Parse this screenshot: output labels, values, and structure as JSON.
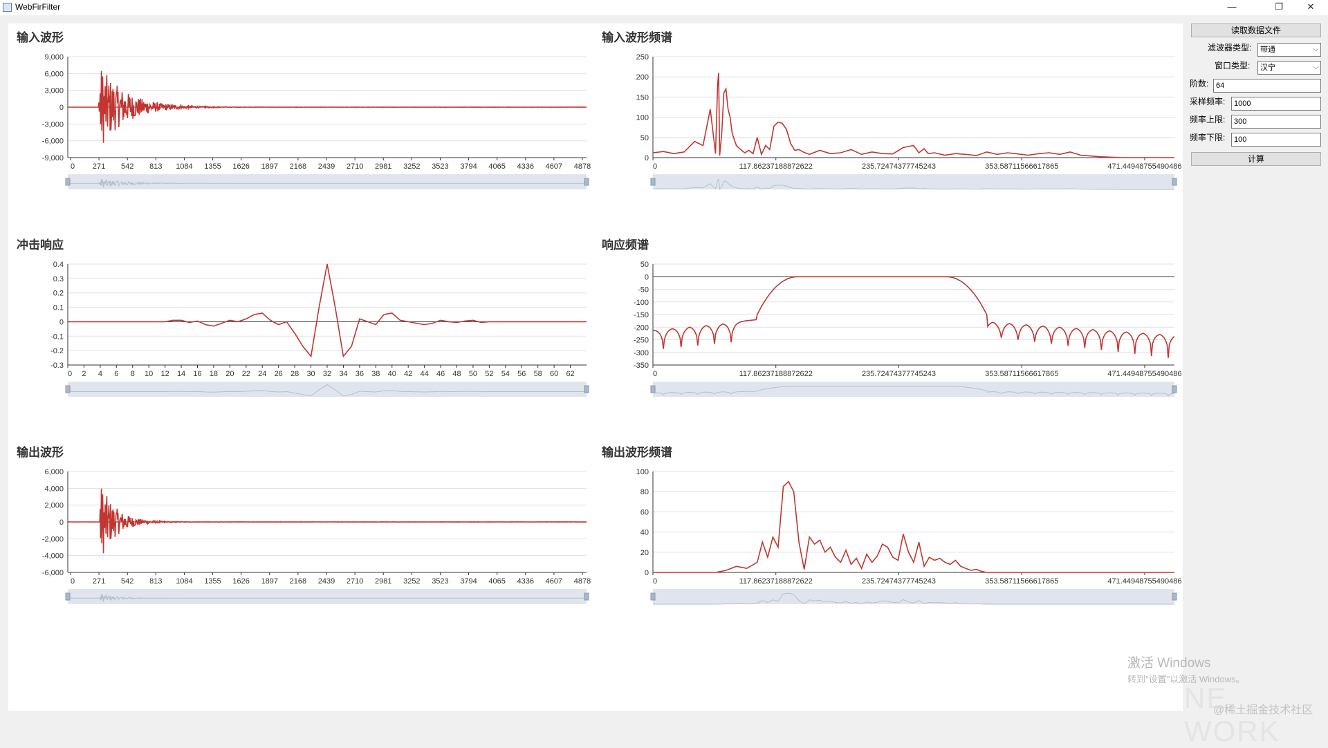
{
  "window": {
    "title": "WebFirFilter",
    "controls": {
      "minimize": "—",
      "maximize": "❐",
      "close": "✕"
    }
  },
  "panel": {
    "read_button": "读取数据文件",
    "filter_type_label": "滤波器类型:",
    "filter_type_value": "带通",
    "window_type_label": "窗口类型:",
    "window_type_value": "汉宁",
    "order_label": "阶数:",
    "order_value": "64",
    "sample_rate_label": "采样频率:",
    "sample_rate_value": "1000",
    "freq_high_label": "频率上限:",
    "freq_high_value": "300",
    "freq_low_label": "频率下限:",
    "freq_low_value": "100",
    "compute_button": "计算"
  },
  "watermark": {
    "activate_title": "激活 Windows",
    "activate_hint": "转到\"设置\"以激活 Windows。",
    "network_text": "NE WORK",
    "community": "@稀土掘金技术社区"
  },
  "colors": {
    "series": "#c23531",
    "axis": "#333333",
    "grid": "#e0e0e0",
    "zoom_bg": "#d8dee9",
    "zoom_handle": "#a7b7cc"
  },
  "chart_data": [
    {
      "id": "input-wave",
      "type": "line",
      "title": "输入波形",
      "yticks": [
        "9,000",
        "6,000",
        "3,000",
        "0",
        "-3,000",
        "-6,000",
        "-9,000"
      ],
      "ylim": [
        -9000,
        9000
      ],
      "xticks": [
        "0",
        "271",
        "542",
        "813",
        "1084",
        "1355",
        "1626",
        "1897",
        "2168",
        "2439",
        "2710",
        "2981",
        "3252",
        "3523",
        "3794",
        "4065",
        "4336",
        "4607",
        "4878"
      ],
      "xlim": [
        0,
        5000
      ],
      "signal": {
        "kind": "burst",
        "onset": 300,
        "peak": 7800,
        "decay": 250
      },
      "datazoom": true
    },
    {
      "id": "input-spectrum",
      "type": "line",
      "title": "输入波形频谱",
      "yticks": [
        "250",
        "200",
        "150",
        "100",
        "50",
        "0"
      ],
      "ylim": [
        0,
        250
      ],
      "xticks": [
        "0",
        "117.86237188872622",
        "235.72474377745243",
        "353.58711566617865",
        "471.44948755490486"
      ],
      "xlim": [
        0,
        500
      ],
      "x": [
        0,
        10,
        20,
        30,
        40,
        48,
        55,
        60,
        62,
        63,
        64,
        66,
        68,
        70,
        72,
        74,
        76,
        78,
        80,
        84,
        88,
        92,
        96,
        100,
        104,
        108,
        112,
        116,
        120,
        124,
        128,
        132,
        136,
        140,
        144,
        148,
        150,
        160,
        170,
        180,
        190,
        200,
        210,
        220,
        230,
        240,
        250,
        255,
        260,
        264,
        270,
        280,
        290,
        300,
        310,
        320,
        330,
        340,
        350,
        360,
        370,
        380,
        390,
        400,
        410,
        420,
        430,
        450,
        470,
        500
      ],
      "y": [
        12,
        15,
        10,
        14,
        40,
        30,
        120,
        10,
        180,
        210,
        5,
        60,
        160,
        170,
        120,
        100,
        60,
        45,
        30,
        20,
        12,
        18,
        10,
        50,
        8,
        30,
        20,
        78,
        88,
        85,
        70,
        35,
        18,
        20,
        14,
        10,
        8,
        18,
        10,
        12,
        20,
        8,
        14,
        10,
        9,
        25,
        30,
        12,
        22,
        10,
        12,
        6,
        10,
        8,
        5,
        14,
        8,
        12,
        9,
        6,
        10,
        12,
        8,
        14,
        6,
        4,
        2,
        0,
        0,
        0
      ],
      "datazoom": true
    },
    {
      "id": "impulse-response",
      "type": "line",
      "title": "冲击响应",
      "yticks": [
        "0.4",
        "0.3",
        "0.2",
        "0.1",
        "0",
        "-0.1",
        "-0.2",
        "-0.3"
      ],
      "ylim": [
        -0.3,
        0.4
      ],
      "xticks": [
        "0",
        "2",
        "4",
        "6",
        "8",
        "10",
        "12",
        "14",
        "16",
        "18",
        "20",
        "22",
        "24",
        "26",
        "28",
        "30",
        "32",
        "34",
        "36",
        "38",
        "40",
        "42",
        "44",
        "46",
        "48",
        "50",
        "52",
        "54",
        "56",
        "58",
        "60",
        "62"
      ],
      "xlim": [
        0,
        64
      ],
      "x": [
        0,
        2,
        4,
        6,
        8,
        10,
        12,
        13,
        14,
        15,
        16,
        17,
        18,
        19,
        20,
        21,
        22,
        23,
        24,
        25,
        26,
        27,
        28,
        29,
        30,
        31,
        32,
        33,
        34,
        35,
        36,
        37,
        38,
        39,
        40,
        41,
        42,
        43,
        44,
        45,
        46,
        47,
        48,
        49,
        50,
        51,
        52,
        54,
        56,
        58,
        60,
        62,
        64
      ],
      "y": [
        0,
        0,
        0,
        0,
        0,
        0,
        0,
        0.01,
        0.01,
        -0.005,
        0.005,
        -0.02,
        -0.03,
        -0.01,
        0.01,
        0,
        0.02,
        0.05,
        0.06,
        0.01,
        -0.02,
        0,
        -0.08,
        -0.17,
        -0.24,
        0.1,
        0.4,
        0.1,
        -0.24,
        -0.17,
        0.02,
        0,
        -0.02,
        0.05,
        0.06,
        0.01,
        0,
        -0.01,
        -0.02,
        -0.01,
        0.01,
        0,
        -0.005,
        0.005,
        0.01,
        -0.005,
        0,
        0,
        0,
        0,
        0,
        0,
        0
      ],
      "datazoom": true
    },
    {
      "id": "response-spectrum",
      "type": "line",
      "title": "响应频谱",
      "yticks": [
        "50",
        "0",
        "-50",
        "-100",
        "-150",
        "-200",
        "-250",
        "-300",
        "-350"
      ],
      "ylim": [
        -350,
        50
      ],
      "xticks": [
        "0",
        "117.86237188872622",
        "235.72474377745243",
        "353.58711566617865",
        "471.44948755490486"
      ],
      "xlim": [
        0,
        500
      ],
      "passband": [
        100,
        320
      ],
      "notches": [
        10,
        27,
        43,
        59,
        75,
        318,
        334,
        350,
        366,
        382,
        398,
        414,
        430,
        446,
        462,
        478,
        494
      ],
      "datazoom": true
    },
    {
      "id": "output-wave",
      "type": "line",
      "title": "输出波形",
      "yticks": [
        "6,000",
        "4,000",
        "2,000",
        "0",
        "-2,000",
        "-4,000",
        "-6,000"
      ],
      "ylim": [
        -6000,
        6000
      ],
      "xticks": [
        "0",
        "271",
        "542",
        "813",
        "1084",
        "1355",
        "1626",
        "1897",
        "2168",
        "2439",
        "2710",
        "2981",
        "3252",
        "3523",
        "3794",
        "4065",
        "4336",
        "4607",
        "4878"
      ],
      "xlim": [
        0,
        5000
      ],
      "signal": {
        "kind": "burst",
        "onset": 310,
        "peak": 4800,
        "decay": 150
      },
      "datazoom": true
    },
    {
      "id": "output-spectrum",
      "type": "line",
      "title": "输出波形频谱",
      "yticks": [
        "100",
        "80",
        "60",
        "40",
        "20",
        "0"
      ],
      "ylim": [
        0,
        100
      ],
      "xticks": [
        "0",
        "117.86237188872622",
        "235.72474377745243",
        "353.58711566617865",
        "471.44948755490486"
      ],
      "xlim": [
        0,
        500
      ],
      "x": [
        0,
        60,
        70,
        80,
        90,
        100,
        105,
        110,
        115,
        120,
        125,
        130,
        135,
        140,
        145,
        150,
        155,
        160,
        165,
        170,
        175,
        180,
        185,
        190,
        195,
        200,
        205,
        210,
        215,
        220,
        225,
        230,
        235,
        240,
        245,
        250,
        255,
        260,
        265,
        270,
        275,
        280,
        285,
        290,
        295,
        300,
        305,
        310,
        315,
        320,
        330,
        500
      ],
      "y": [
        0,
        0,
        2,
        6,
        4,
        10,
        30,
        15,
        35,
        25,
        85,
        90,
        80,
        30,
        3,
        35,
        28,
        32,
        20,
        25,
        15,
        10,
        22,
        8,
        14,
        4,
        18,
        10,
        16,
        28,
        25,
        15,
        12,
        38,
        20,
        10,
        30,
        6,
        15,
        12,
        14,
        10,
        8,
        12,
        6,
        4,
        2,
        3,
        1,
        0,
        0,
        0
      ],
      "datazoom": true
    }
  ]
}
